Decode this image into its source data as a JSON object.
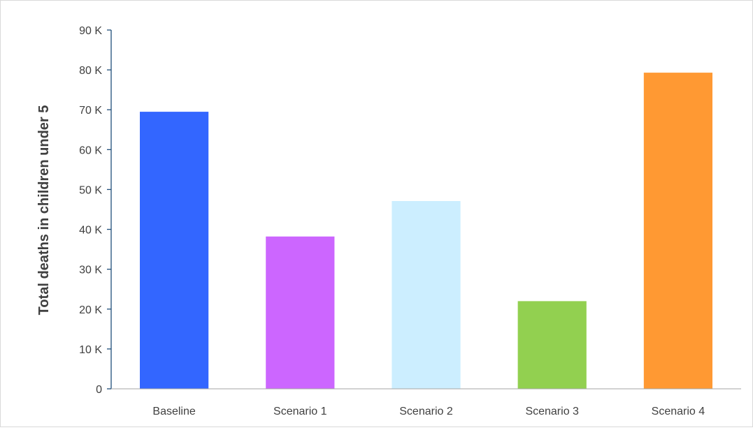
{
  "chart_data": {
    "type": "bar",
    "title": "",
    "xlabel": "",
    "ylabel": "Total deaths in children under 5",
    "categories": [
      "Baseline",
      "Scenario 1",
      "Scenario 2",
      "Scenario 3",
      "Scenario 4"
    ],
    "values": [
      69500,
      38200,
      47100,
      22000,
      79300
    ],
    "colors": [
      "#3366ff",
      "#cc66ff",
      "#cceeff",
      "#92d050",
      "#ff9933"
    ],
    "ylim": [
      0,
      90000
    ],
    "yticks": [
      0,
      10000,
      20000,
      30000,
      40000,
      50000,
      60000,
      70000,
      80000,
      90000
    ],
    "ytick_labels": [
      "0",
      "10 K",
      "20 K",
      "30 K",
      "40 K",
      "50 K",
      "60 K",
      "70 K",
      "80 K",
      "90 K"
    ],
    "grid": false,
    "legend": "none",
    "axis_color": "#1f4e79"
  }
}
